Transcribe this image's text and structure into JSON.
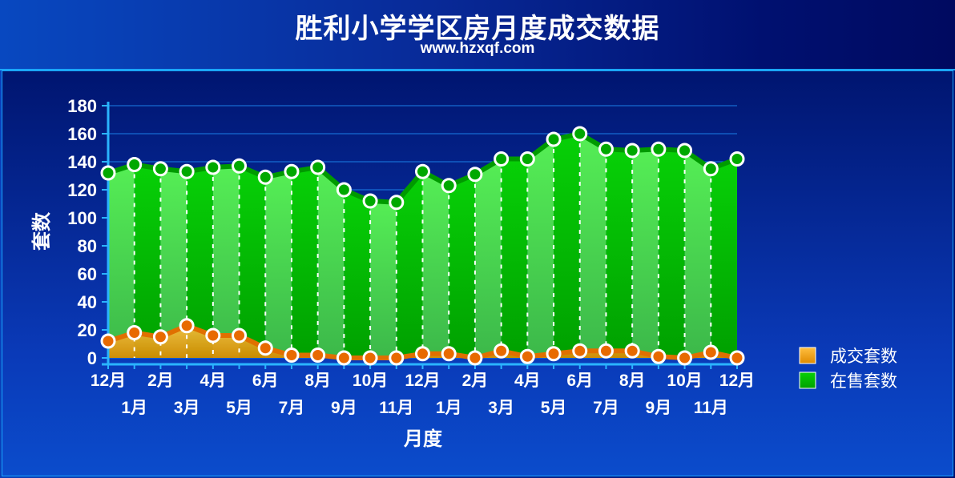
{
  "chart_data": {
    "type": "area",
    "title": "胜利小学学区房月度成交数据",
    "subtitle": "www.hzxqf.com",
    "xlabel": "月度",
    "ylabel": "套数",
    "ylim": [
      0,
      180
    ],
    "yticks": [
      0,
      20,
      40,
      60,
      80,
      100,
      120,
      140,
      160,
      180
    ],
    "categories": [
      "12月",
      "1月",
      "2月",
      "3月",
      "4月",
      "5月",
      "6月",
      "7月",
      "8月",
      "9月",
      "10月",
      "11月",
      "12月",
      "1月",
      "2月",
      "3月",
      "4月",
      "5月",
      "6月",
      "7月",
      "8月",
      "9月",
      "10月",
      "11月",
      "12月"
    ],
    "series": [
      {
        "name": "在售套数",
        "color": "#00c000",
        "values": [
          132,
          138,
          135,
          133,
          136,
          137,
          129,
          133,
          136,
          120,
          112,
          111,
          133,
          123,
          131,
          142,
          142,
          156,
          160,
          149,
          148,
          149,
          148,
          135,
          142
        ]
      },
      {
        "name": "成交套数",
        "color": "#f5a623",
        "values": [
          12,
          18,
          15,
          23,
          16,
          16,
          7,
          2,
          2,
          0,
          0,
          0,
          3,
          3,
          0,
          5,
          1,
          3,
          5,
          5,
          5,
          1,
          0,
          4,
          0
        ]
      }
    ],
    "legend_position": "right",
    "grid": true
  }
}
